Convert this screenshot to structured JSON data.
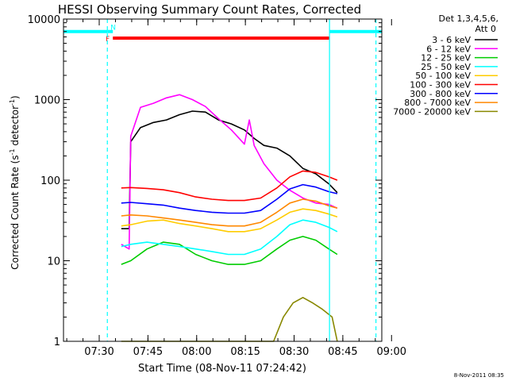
{
  "chart_data": {
    "type": "line",
    "title": "HESSI Observing Summary Count Rates, Corrected",
    "xlabel": "Start Time (08-Nov-11 07:24:42)",
    "ylabel_main": "Corrected Count Rate (s",
    "ylabel_sup1": "-1",
    "ylabel_mid": " detector",
    "ylabel_sup2": "-1",
    "ylabel_end": ")",
    "y_scale": "log",
    "ylim": [
      1,
      10000
    ],
    "xlim_minutes": [
      -5.7,
      92.3
    ],
    "x_ticks": [
      {
        "minute": 5.3,
        "label": "07:30"
      },
      {
        "minute": 20.3,
        "label": "07:45"
      },
      {
        "minute": 35.3,
        "label": "08:00"
      },
      {
        "minute": 50.3,
        "label": "08:15"
      },
      {
        "minute": 65.3,
        "label": "08:30"
      },
      {
        "minute": 80.3,
        "label": "08:45"
      },
      {
        "minute": 95.3,
        "label": "09:00"
      }
    ],
    "y_ticks": [
      {
        "value": 1,
        "label": "1"
      },
      {
        "value": 10,
        "label": "10"
      },
      {
        "value": 100,
        "label": "100"
      },
      {
        "value": 1000,
        "label": "1000"
      },
      {
        "value": 10000,
        "label": "10000"
      }
    ],
    "legend_position": "top-right",
    "legend_header": [
      "Det 1,3,4,5,6,",
      "Att 0"
    ],
    "series": [
      {
        "name": "3 - 6 keV",
        "color": "#000000",
        "x": [
          12.1,
          14.5,
          15.0,
          18.0,
          22.0,
          26.0,
          30.0,
          34.0,
          38.0,
          42.0,
          46.0,
          50.0,
          53.0,
          56.0,
          60.0,
          64.0,
          68.0,
          72.0,
          76.0,
          78.6
        ],
        "y": [
          25,
          25,
          300,
          450,
          520,
          560,
          650,
          720,
          700,
          560,
          500,
          420,
          330,
          270,
          250,
          200,
          140,
          120,
          90,
          70
        ]
      },
      {
        "name": "6 - 12 keV",
        "color": "#ff00ff",
        "x": [
          12.1,
          14.5,
          15.0,
          18.0,
          22.0,
          26.0,
          30.0,
          34.0,
          38.0,
          42.0,
          46.0,
          50.0,
          51.5,
          53.0,
          56.0,
          60.0,
          64.0,
          68.0,
          72.0,
          76.0,
          78.6
        ],
        "y": [
          16,
          14,
          350,
          800,
          900,
          1050,
          1150,
          1000,
          820,
          580,
          420,
          280,
          560,
          270,
          160,
          100,
          75,
          60,
          52,
          50,
          45
        ]
      },
      {
        "name": "12 - 25 keV",
        "color": "#00cc00",
        "x": [
          12.1,
          15.0,
          20.0,
          25.0,
          30.0,
          35.0,
          40.0,
          45.0,
          50.0,
          55.0,
          60.0,
          64.0,
          68.0,
          72.0,
          76.0,
          78.6
        ],
        "y": [
          9,
          10,
          14,
          17,
          16,
          12,
          10,
          9,
          9,
          10,
          14,
          18,
          20,
          18,
          14,
          12
        ]
      },
      {
        "name": "25 - 50 keV",
        "color": "#00ffff",
        "x": [
          12.1,
          15.0,
          20.0,
          25.0,
          30.0,
          35.0,
          40.0,
          45.0,
          50.0,
          55.0,
          60.0,
          64.0,
          68.0,
          72.0,
          76.0,
          78.6
        ],
        "y": [
          15,
          16,
          17,
          16,
          15,
          14,
          13,
          12,
          12,
          14,
          20,
          28,
          32,
          30,
          26,
          23
        ]
      },
      {
        "name": "50 - 100 keV",
        "color": "#ffcc00",
        "x": [
          12.1,
          15.0,
          20.0,
          25.0,
          30.0,
          35.0,
          40.0,
          45.0,
          50.0,
          55.0,
          60.0,
          64.0,
          68.0,
          72.0,
          76.0,
          78.6
        ],
        "y": [
          27,
          28,
          31,
          32,
          29,
          27,
          25,
          23,
          23,
          25,
          32,
          40,
          44,
          42,
          38,
          35
        ]
      },
      {
        "name": "100 - 300 keV",
        "color": "#ff0000",
        "x": [
          12.1,
          15.0,
          20.0,
          25.0,
          30.0,
          35.0,
          40.0,
          45.0,
          50.0,
          55.0,
          60.0,
          64.0,
          68.0,
          72.0,
          76.0,
          78.6
        ],
        "y": [
          80,
          81,
          79,
          76,
          70,
          62,
          58,
          56,
          56,
          60,
          80,
          110,
          130,
          125,
          110,
          100
        ]
      },
      {
        "name": "300 - 800 keV",
        "color": "#0000ff",
        "x": [
          12.1,
          15.0,
          20.0,
          25.0,
          30.0,
          35.0,
          40.0,
          45.0,
          50.0,
          55.0,
          60.0,
          64.0,
          68.0,
          72.0,
          76.0,
          78.6
        ],
        "y": [
          52,
          53,
          51,
          49,
          45,
          42,
          40,
          39,
          39,
          42,
          58,
          78,
          88,
          82,
          72,
          68
        ]
      },
      {
        "name": "800 - 7000 keV",
        "color": "#ff8800",
        "x": [
          12.1,
          15.0,
          20.0,
          25.0,
          30.0,
          35.0,
          40.0,
          45.0,
          50.0,
          55.0,
          60.0,
          64.0,
          68.0,
          72.0,
          76.0,
          78.6
        ],
        "y": [
          36,
          37,
          36,
          34,
          32,
          30,
          28,
          27,
          27,
          30,
          40,
          52,
          58,
          55,
          48,
          45
        ]
      },
      {
        "name": "7000 - 20000 keV",
        "color": "#888800",
        "x": [
          12.1,
          16.0,
          30.0,
          59.0,
          62.0,
          65.0,
          68.0,
          71.0,
          74.0,
          77.0,
          78.6
        ],
        "y": [
          1,
          1,
          1,
          1,
          2,
          3,
          3.5,
          3,
          2.5,
          2,
          1
        ]
      }
    ],
    "flag_bars": [
      {
        "label": "",
        "color": "#00ffff",
        "x_start": -5.7,
        "x_end": 7.8,
        "value": 7000
      },
      {
        "label": "N",
        "color": "#00ffff",
        "x_start": 7.8,
        "x_end": 9.5,
        "value": 7000
      },
      {
        "label": "",
        "color": "#00ffff",
        "x_start": 76.2,
        "x_end": 92.3,
        "value": 7000
      },
      {
        "label": "F",
        "color": "#ff0000",
        "x_start": 9.5,
        "x_end": 76.2,
        "value": 5800
      }
    ],
    "vlines": [
      {
        "minute": 7.8,
        "style": "dashed",
        "color": "#00ffff"
      },
      {
        "minute": 76.2,
        "style": "solid",
        "color": "#00ffff"
      },
      {
        "minute": 90.5,
        "style": "dashed",
        "color": "#00ffff"
      }
    ],
    "timestamp": "8-Nov-2011 08:35"
  }
}
